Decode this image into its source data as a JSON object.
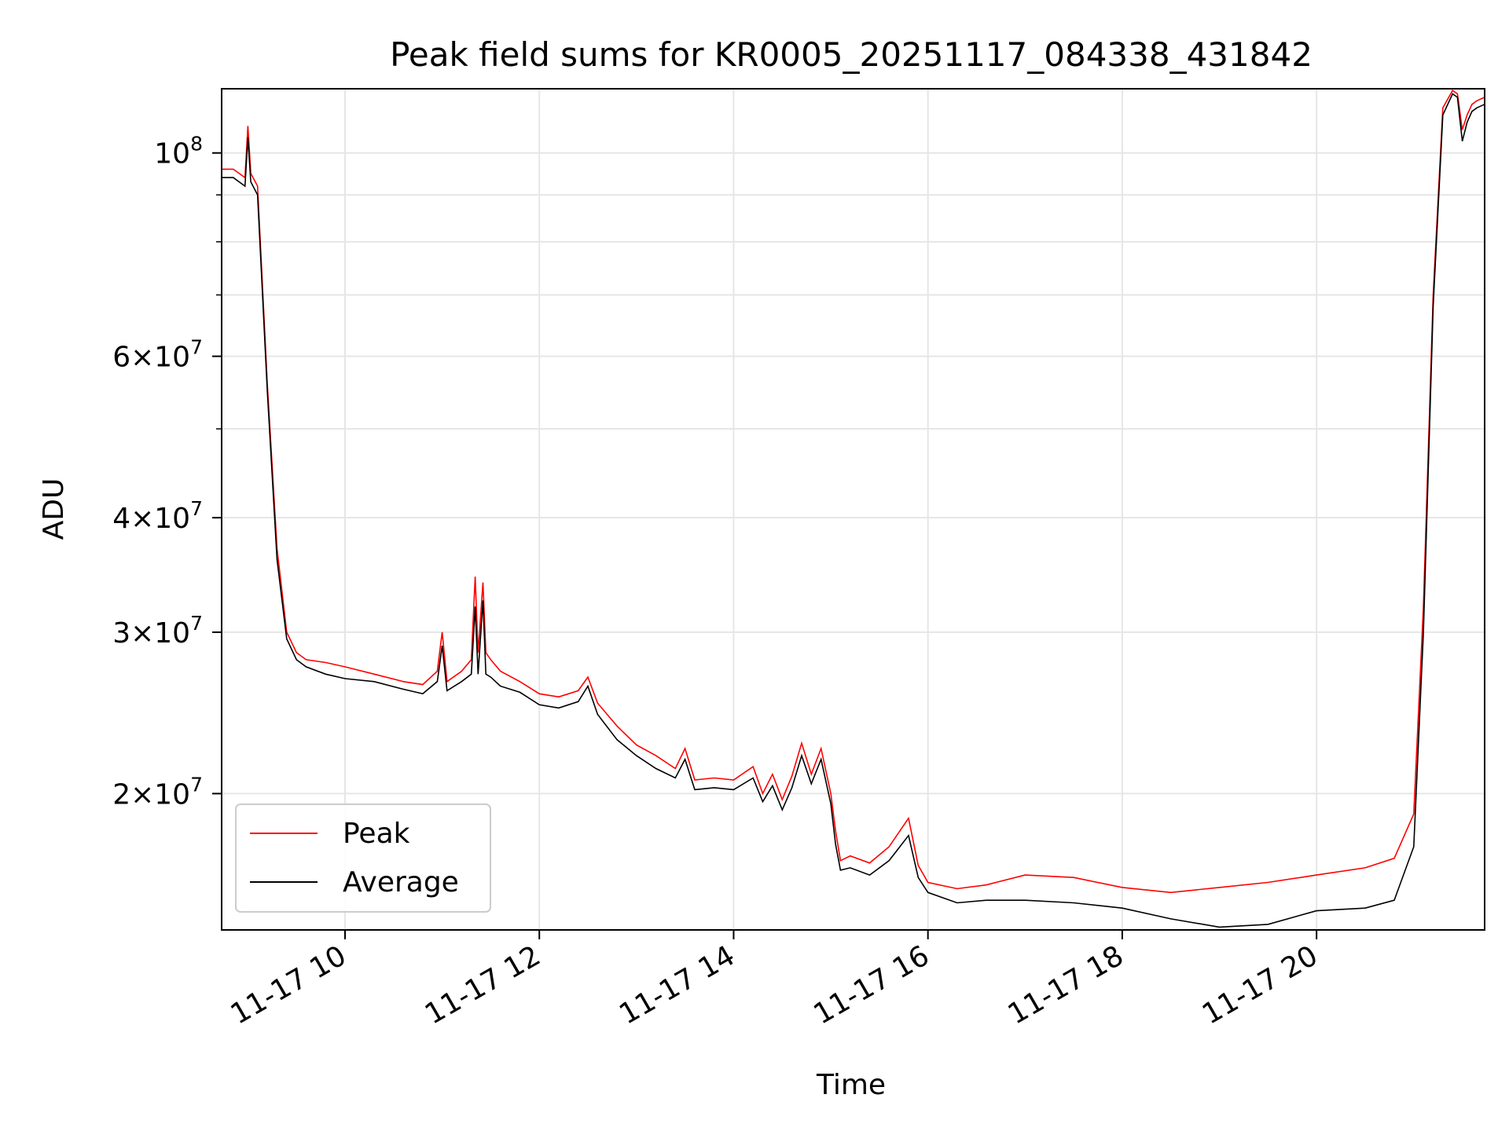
{
  "chart_data": {
    "type": "line",
    "title": "Peak field sums for KR0005_20251117_084338_431842",
    "xlabel": "Time",
    "ylabel": "ADU",
    "yscale": "log",
    "x_unit": "hours since 2025-11-17 00:00",
    "xlim": [
      8.73,
      21.73
    ],
    "ylim": [
      14200000,
      117500000
    ],
    "grid": true,
    "legend_position": "lower-left",
    "xticks": [
      {
        "value": 10,
        "label": "11-17 10"
      },
      {
        "value": 12,
        "label": "11-17 12"
      },
      {
        "value": 14,
        "label": "11-17 14"
      },
      {
        "value": 16,
        "label": "11-17 16"
      },
      {
        "value": 18,
        "label": "11-17 18"
      },
      {
        "value": 20,
        "label": "11-17 20"
      }
    ],
    "yticks": [
      {
        "value": 20000000,
        "mantissa": "2",
        "exponent": "7"
      },
      {
        "value": 30000000,
        "mantissa": "3",
        "exponent": "7"
      },
      {
        "value": 40000000,
        "mantissa": "4",
        "exponent": "7"
      },
      {
        "value": 60000000,
        "mantissa": "6",
        "exponent": "7"
      },
      {
        "value": 100000000,
        "mantissa": "",
        "exponent": "8"
      }
    ],
    "yminor": [
      50000000,
      70000000,
      80000000,
      90000000
    ],
    "series": [
      {
        "name": "Peak",
        "color": "#ff0000",
        "x": [
          8.73,
          8.85,
          8.97,
          9.0,
          9.03,
          9.1,
          9.2,
          9.3,
          9.4,
          9.5,
          9.6,
          9.8,
          10.0,
          10.3,
          10.6,
          10.8,
          10.95,
          11.0,
          11.05,
          11.2,
          11.3,
          11.34,
          11.37,
          11.42,
          11.45,
          11.5,
          11.6,
          11.8,
          12.0,
          12.2,
          12.4,
          12.5,
          12.6,
          12.8,
          13.0,
          13.2,
          13.4,
          13.5,
          13.6,
          13.8,
          14.0,
          14.2,
          14.3,
          14.4,
          14.5,
          14.6,
          14.7,
          14.8,
          14.9,
          15.0,
          15.05,
          15.1,
          15.2,
          15.4,
          15.6,
          15.8,
          15.9,
          16.0,
          16.3,
          16.6,
          17.0,
          17.5,
          18.0,
          18.5,
          19.0,
          19.5,
          20.0,
          20.5,
          20.8,
          21.0,
          21.1,
          21.2,
          21.3,
          21.4,
          21.45,
          21.5,
          21.55,
          21.6,
          21.65,
          21.73
        ],
        "y": [
          96000000,
          96000000,
          94000000,
          107000000,
          95000000,
          92000000,
          56000000,
          37000000,
          30000000,
          28500000,
          28000000,
          27800000,
          27500000,
          27000000,
          26500000,
          26300000,
          27200000,
          30000000,
          26500000,
          27200000,
          28000000,
          34500000,
          28500000,
          34000000,
          28500000,
          28000000,
          27200000,
          26500000,
          25700000,
          25500000,
          25900000,
          26800000,
          25100000,
          23700000,
          22600000,
          22000000,
          21300000,
          22400000,
          20700000,
          20800000,
          20700000,
          21400000,
          20000000,
          21000000,
          19700000,
          20900000,
          22700000,
          21000000,
          22400000,
          20000000,
          18200000,
          16900000,
          17100000,
          16800000,
          17500000,
          18800000,
          16700000,
          16000000,
          15750000,
          15900000,
          16300000,
          16200000,
          15800000,
          15600000,
          15800000,
          16000000,
          16300000,
          16600000,
          17000000,
          19000000,
          32000000,
          70000000,
          112000000,
          117000000,
          116000000,
          106000000,
          110000000,
          113000000,
          114000000,
          115000000
        ]
      },
      {
        "name": "Average",
        "color": "#000000",
        "x": [
          8.73,
          8.85,
          8.97,
          9.0,
          9.03,
          9.1,
          9.2,
          9.3,
          9.4,
          9.5,
          9.6,
          9.8,
          10.0,
          10.3,
          10.6,
          10.8,
          10.95,
          11.0,
          11.05,
          11.2,
          11.3,
          11.34,
          11.37,
          11.42,
          11.45,
          11.5,
          11.6,
          11.8,
          12.0,
          12.2,
          12.4,
          12.5,
          12.6,
          12.8,
          13.0,
          13.2,
          13.4,
          13.5,
          13.6,
          13.8,
          14.0,
          14.2,
          14.3,
          14.4,
          14.5,
          14.6,
          14.7,
          14.8,
          14.9,
          15.0,
          15.05,
          15.1,
          15.2,
          15.4,
          15.6,
          15.8,
          15.9,
          16.0,
          16.3,
          16.6,
          17.0,
          17.5,
          18.0,
          18.5,
          19.0,
          19.5,
          20.0,
          20.5,
          20.8,
          21.0,
          21.1,
          21.2,
          21.3,
          21.4,
          21.45,
          21.5,
          21.55,
          21.6,
          21.65,
          21.73
        ],
        "y": [
          94000000,
          94000000,
          92000000,
          104000000,
          93000000,
          90000000,
          55000000,
          36000000,
          29500000,
          28000000,
          27500000,
          27000000,
          26700000,
          26500000,
          26000000,
          25700000,
          26500000,
          29000000,
          25900000,
          26500000,
          27000000,
          32000000,
          27000000,
          32500000,
          27000000,
          26800000,
          26200000,
          25800000,
          25000000,
          24800000,
          25200000,
          26200000,
          24400000,
          22900000,
          22000000,
          21300000,
          20800000,
          21800000,
          20200000,
          20300000,
          20200000,
          20800000,
          19600000,
          20400000,
          19200000,
          20300000,
          22000000,
          20500000,
          21800000,
          19500000,
          17600000,
          16500000,
          16600000,
          16300000,
          16900000,
          18000000,
          16200000,
          15600000,
          15200000,
          15300000,
          15300000,
          15200000,
          15000000,
          14600000,
          14300000,
          14400000,
          14900000,
          15000000,
          15300000,
          17500000,
          30000000,
          68000000,
          110000000,
          116000000,
          115000000,
          103000000,
          108000000,
          111000000,
          112000000,
          113000000
        ]
      }
    ]
  }
}
